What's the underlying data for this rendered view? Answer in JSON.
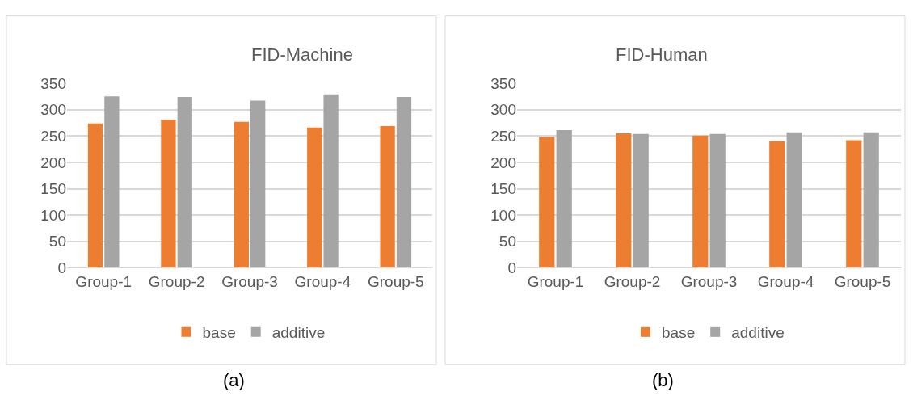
{
  "chart_data": [
    {
      "type": "bar",
      "title": "FID-Machine",
      "categories": [
        "Group-1",
        "Group-2",
        "Group-3",
        "Group-4",
        "Group-5"
      ],
      "series": [
        {
          "name": "base",
          "color": "#ed7d31",
          "values": [
            274,
            281,
            277,
            266,
            269
          ]
        },
        {
          "name": "additive",
          "color": "#a5a5a5",
          "values": [
            325,
            324,
            317,
            329,
            324
          ]
        }
      ],
      "ylim": [
        0,
        350
      ],
      "yticks": [
        0,
        50,
        100,
        150,
        200,
        250,
        300,
        350
      ],
      "grid": "y",
      "legend": "bottom",
      "annotations": [
        "(a)"
      ]
    },
    {
      "type": "bar",
      "title": "FID-Human",
      "categories": [
        "Group-1",
        "Group-2",
        "Group-3",
        "Group-4",
        "Group-5"
      ],
      "series": [
        {
          "name": "base",
          "color": "#ed7d31",
          "values": [
            248,
            255,
            251,
            240,
            242
          ]
        },
        {
          "name": "additive",
          "color": "#a5a5a5",
          "values": [
            261,
            254,
            254,
            257,
            257
          ]
        }
      ],
      "ylim": [
        0,
        350
      ],
      "yticks": [
        0,
        50,
        100,
        150,
        200,
        250,
        300,
        350
      ],
      "grid": "y",
      "legend": "bottom",
      "annotations": [
        "(b)"
      ]
    }
  ]
}
